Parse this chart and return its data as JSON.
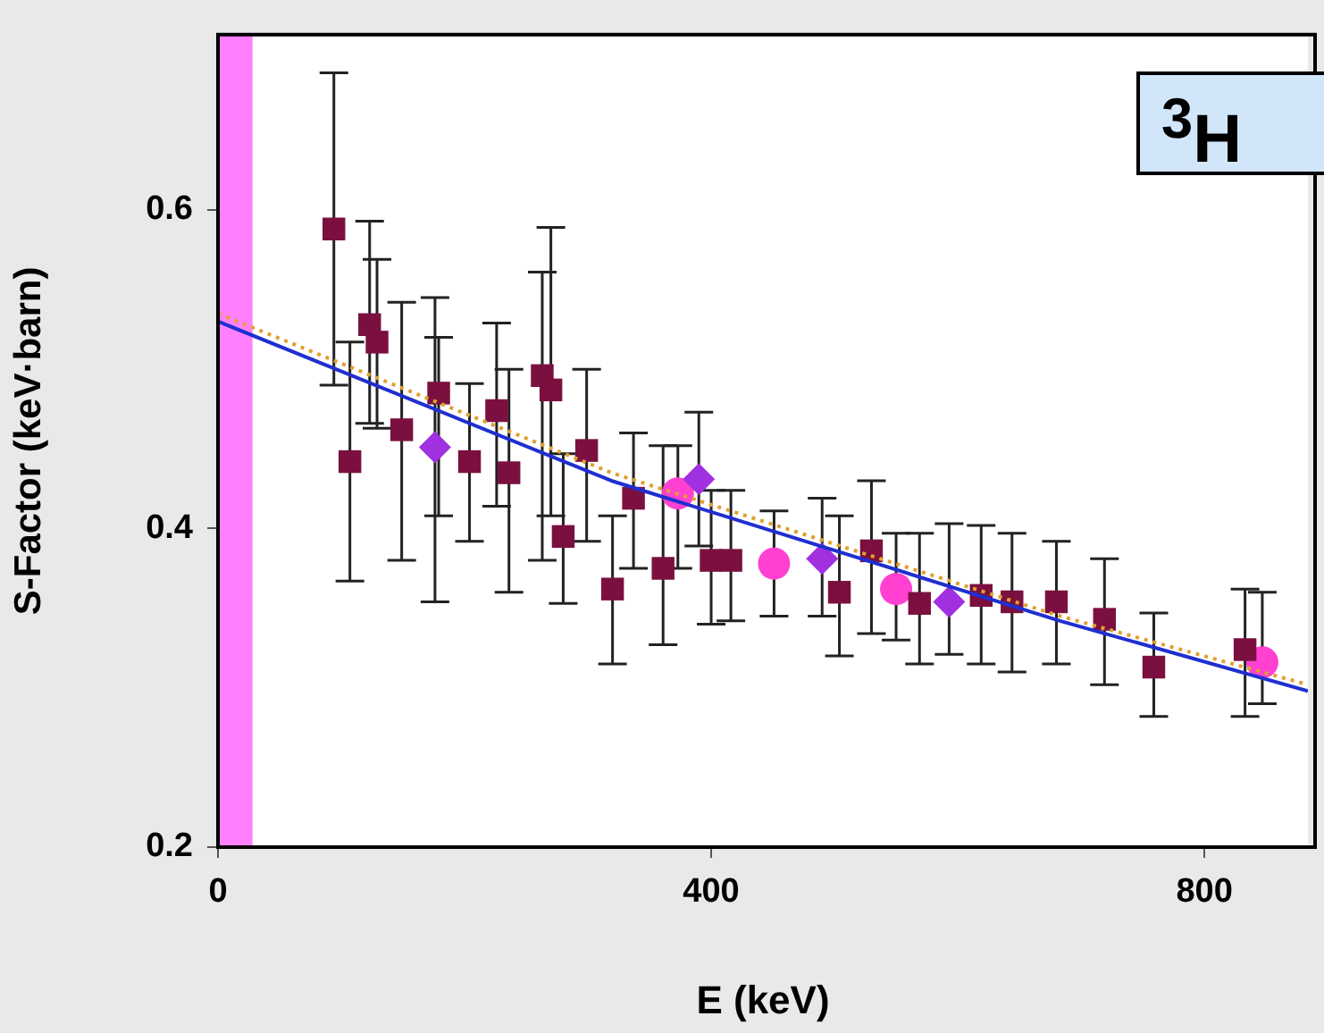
{
  "chart_data": {
    "type": "scatter",
    "xlabel": "E (keV)",
    "ylabel": "S-Factor (keV·barn)",
    "annotations": [
      "$^{3}$H"
    ],
    "xlim": [
      0,
      884
    ],
    "ylim": [
      0.2,
      0.71
    ],
    "xticks": [
      0,
      400,
      800
    ],
    "yticks": [
      0.2,
      0.4,
      0.6
    ],
    "grid": false,
    "legend": false,
    "bands": [
      {
        "axis": "x",
        "from": 0,
        "to": 28,
        "color": "#ff80ff"
      }
    ],
    "series": [
      {
        "type": "line",
        "color": "#1f2fd0",
        "marker": "none",
        "x": [
          0,
          319,
          683,
          884
        ],
        "values": [
          0.53,
          0.43,
          0.342,
          0.298
        ]
      },
      {
        "type": "line",
        "color": "#e0a030",
        "marker": "none",
        "line_style": "dotted",
        "x": [
          0,
          319,
          683,
          884
        ],
        "values": [
          0.535,
          0.435,
          0.345,
          0.302
        ]
      },
      {
        "color": "#7b1040",
        "marker": "square",
        "x": [
          94,
          107,
          123,
          129,
          149,
          171,
          179,
          204,
          226,
          236,
          263,
          270,
          280,
          299,
          320,
          337,
          361,
          400,
          416,
          504,
          530,
          569,
          619,
          644,
          680,
          719,
          759,
          833
        ],
        "values": [
          0.588,
          0.442,
          0.528,
          0.517,
          0.462,
          null,
          0.485,
          0.442,
          0.474,
          0.435,
          0.496,
          0.487,
          0.395,
          0.449,
          0.362,
          0.419,
          0.375,
          0.38,
          0.38,
          0.36,
          0.386,
          0.353,
          0.358,
          0.354,
          0.354,
          0.343,
          0.313,
          0.324
        ],
        "errors": [
          [
            0.49,
            0.686
          ],
          [
            0.367,
            0.517
          ],
          [
            0.466,
            0.593
          ],
          [
            0.463,
            0.569
          ],
          [
            0.38,
            0.542
          ],
          null,
          [
            0.408,
            0.52
          ],
          [
            0.392,
            0.491
          ],
          [
            0.414,
            0.529
          ],
          [
            0.36,
            0.5
          ],
          [
            0.38,
            0.561
          ],
          [
            0.408,
            0.589
          ],
          [
            0.353,
            0.447
          ],
          [
            0.392,
            0.5
          ],
          [
            0.315,
            0.408
          ],
          [
            0.375,
            0.46
          ],
          [
            0.327,
            0.452
          ],
          [
            0.34,
            0.424
          ],
          [
            0.342,
            0.424
          ],
          [
            0.32,
            0.408
          ],
          [
            0.334,
            0.43
          ],
          [
            0.315,
            0.397
          ],
          [
            0.315,
            0.402
          ],
          [
            0.31,
            0.397
          ],
          [
            0.315,
            0.392
          ],
          [
            0.302,
            0.381
          ],
          [
            0.282,
            0.347
          ],
          [
            0.282,
            0.362
          ]
        ]
      },
      {
        "color": "#a030e0",
        "marker": "diamond",
        "x": [
          176,
          390,
          490,
          593
        ],
        "values": [
          0.451,
          0.431,
          0.381,
          0.354
        ],
        "errors": [
          [
            0.354,
            0.545
          ],
          [
            0.389,
            0.473
          ],
          [
            0.345,
            0.419
          ],
          [
            0.321,
            0.403
          ]
        ]
      },
      {
        "color": "#ff40d0",
        "marker": "circle",
        "x": [
          373,
          451,
          550,
          847
        ],
        "values": [
          0.422,
          0.378,
          0.362,
          0.316
        ],
        "errors": [
          [
            0.375,
            0.452
          ],
          [
            0.345,
            0.411
          ],
          [
            0.33,
            0.397
          ],
          [
            0.29,
            0.36
          ]
        ]
      }
    ]
  }
}
